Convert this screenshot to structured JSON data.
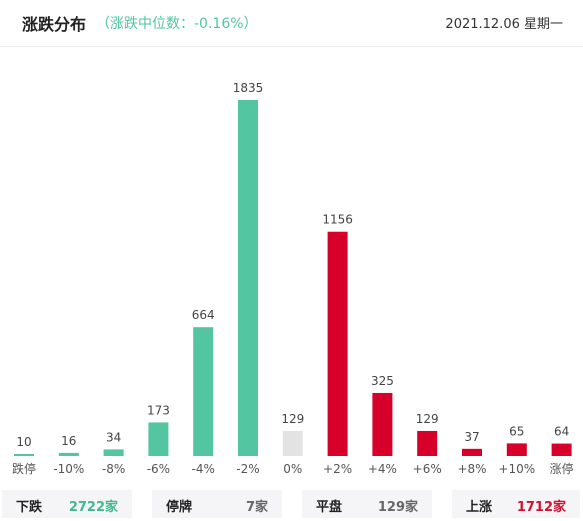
{
  "header": {
    "title": "涨跌分布",
    "subtitle": "（涨跌中位数：-0.16%）",
    "date": "2021.12.06 星期一"
  },
  "colors": {
    "down": "#53c5a0",
    "flat": "#e3e3e3",
    "up": "#d6002a"
  },
  "chart_data": {
    "type": "bar",
    "categories": [
      "跌停",
      "-10%",
      "-8%",
      "-6%",
      "-4%",
      "-2%",
      "0%",
      "+2%",
      "+4%",
      "+6%",
      "+8%",
      "+10%",
      "涨停"
    ],
    "values": [
      10,
      16,
      34,
      173,
      664,
      1835,
      129,
      1156,
      325,
      129,
      37,
      65,
      64
    ],
    "groups": [
      "down",
      "down",
      "down",
      "down",
      "down",
      "down",
      "flat",
      "up",
      "up",
      "up",
      "up",
      "up",
      "up"
    ],
    "ylim": [
      0,
      1835
    ]
  },
  "summary": {
    "down": {
      "label": "下跌",
      "value": "2722家"
    },
    "suspended": {
      "label": "停牌",
      "value": "7家"
    },
    "flat": {
      "label": "平盘",
      "value": "129家"
    },
    "up": {
      "label": "上涨",
      "value": "1712家"
    }
  }
}
